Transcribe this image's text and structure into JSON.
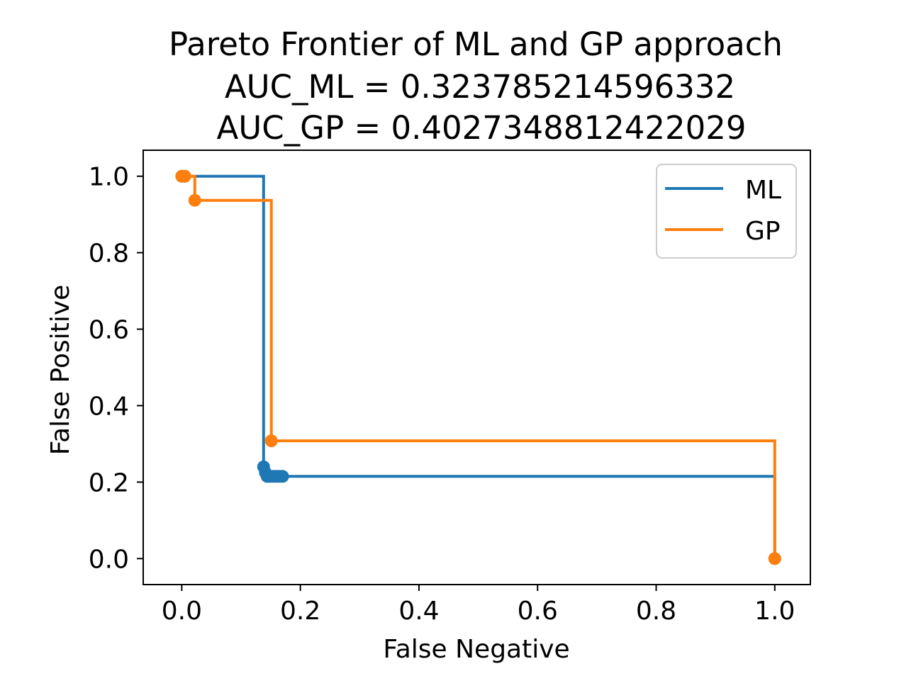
{
  "chart_data": {
    "type": "line",
    "title_lines": [
      "Pareto Frontier of ML and GP approach",
      "AUC_ML = 0.323785214596332",
      "AUC_GP = 0.4027348812422029"
    ],
    "xlabel": "False Negative",
    "ylabel": "False Positive",
    "xlim": [
      -0.065,
      1.06
    ],
    "ylim": [
      -0.068,
      1.068
    ],
    "xticks": [
      0.0,
      0.2,
      0.4,
      0.6,
      0.8,
      1.0
    ],
    "xtick_labels": [
      "0.0",
      "0.2",
      "0.4",
      "0.6",
      "0.8",
      "1.0"
    ],
    "yticks": [
      0.0,
      0.2,
      0.4,
      0.6,
      0.8,
      1.0
    ],
    "ytick_labels": [
      "0.0",
      "0.2",
      "0.4",
      "0.6",
      "0.8",
      "1.0"
    ],
    "grid": false,
    "legend_position": "upper right",
    "drawstyle": "steps-post",
    "series": [
      {
        "name": "ML",
        "color": "#1f77b4",
        "x": [
          0.0,
          0.005,
          0.138,
          0.141,
          0.144,
          0.147,
          0.15,
          0.155,
          0.16,
          0.165,
          0.17,
          1.0
        ],
        "y": [
          1.0,
          1.0,
          0.24,
          0.225,
          0.215,
          0.215,
          0.215,
          0.215,
          0.215,
          0.215,
          0.215,
          0.0
        ]
      },
      {
        "name": "GP",
        "color": "#ff7f0e",
        "x": [
          0.0,
          0.005,
          0.022,
          0.151,
          1.0
        ],
        "y": [
          1.0,
          1.0,
          0.937,
          0.308,
          0.0
        ]
      }
    ]
  }
}
